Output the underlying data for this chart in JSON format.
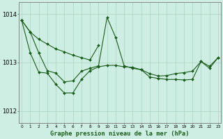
{
  "title": "Graphe pression niveau de la mer (hPa)",
  "xlabel_hours": [
    0,
    1,
    2,
    3,
    4,
    5,
    6,
    7,
    8,
    9,
    10,
    11,
    12,
    13,
    14,
    15,
    16,
    17,
    18,
    19,
    20,
    21,
    22,
    23
  ],
  "ylim": [
    1011.75,
    1014.25
  ],
  "yticks": [
    1012,
    1013,
    1014
  ],
  "background_color": "#ceeee4",
  "line_color": "#1a5c1a",
  "grid_color": "#aad4be",
  "series": [
    [
      1013.87,
      1013.63,
      1013.48,
      1013.38,
      1013.28,
      1013.22,
      1013.15,
      1013.1,
      1013.05,
      1013.35,
      null,
      null,
      null,
      null,
      null,
      null,
      null,
      null,
      null,
      null,
      null,
      null,
      null,
      null
    ],
    [
      1013.87,
      1013.63,
      1013.2,
      1012.83,
      1012.78,
      1012.6,
      1012.62,
      1012.82,
      1012.88,
      1012.93,
      1013.93,
      1013.52,
      1012.93,
      1012.88,
      1012.85,
      1012.77,
      1012.72,
      1012.73,
      1012.77,
      1012.79,
      1012.82,
      1013.02,
      1012.92,
      1013.1
    ],
    [
      1013.87,
      1013.2,
      1012.8,
      1012.78,
      1012.55,
      1012.37,
      1012.37,
      1012.65,
      1012.83,
      1012.91,
      1012.94,
      1012.94,
      1012.91,
      1012.9,
      1012.85,
      1012.7,
      1012.67,
      1012.65,
      1012.65,
      1012.64,
      1012.65,
      1013.02,
      1012.88,
      1013.1
    ]
  ]
}
